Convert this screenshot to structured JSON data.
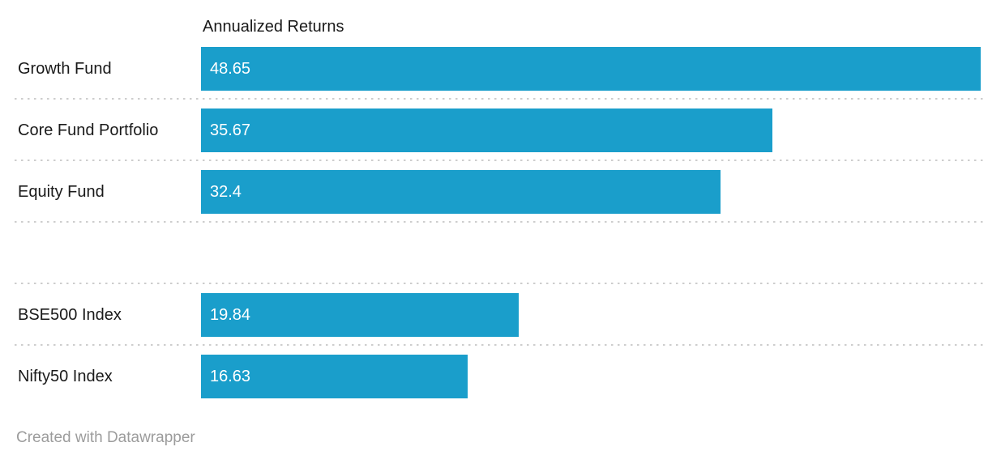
{
  "chart_data": {
    "type": "bar",
    "orientation": "horizontal",
    "title": "Annualized Returns",
    "categories": [
      "Growth Fund",
      "Core Fund Portfolio",
      "Equity Fund",
      "",
      "BSE500 Index",
      "Nifty50 Index"
    ],
    "values": [
      48.65,
      35.67,
      32.4,
      null,
      19.84,
      16.63
    ],
    "value_labels": [
      "48.65",
      "35.67",
      "32.4",
      "",
      "19.84",
      "16.63"
    ],
    "xlim": [
      0,
      48.65
    ],
    "bar_color": "#1A9ECB",
    "label_color": "#1A1A1A",
    "value_label_color": "#FFFFFF",
    "separator_style": "dotted",
    "separator_color": "#CDCDCD",
    "legend": "none"
  },
  "footer": {
    "attribution": "Created with Datawrapper",
    "color": "#9C9C9C"
  }
}
